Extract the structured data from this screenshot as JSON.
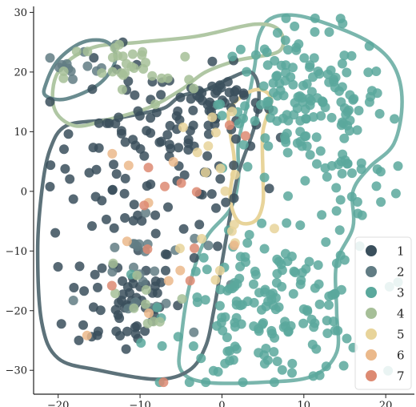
{
  "chart_data": {
    "type": "scatter",
    "title": "",
    "xlabel": "",
    "ylabel": "",
    "xlim": [
      -23,
      23.5
    ],
    "ylim": [
      -34,
      31
    ],
    "xticks": [
      -20,
      -10,
      0,
      10,
      20
    ],
    "yticks": [
      -30,
      -20,
      -10,
      0,
      10,
      20,
      30
    ],
    "xtick_labels": [
      "−20",
      "−10",
      "0",
      "10",
      "20"
    ],
    "ytick_labels": [
      "−30",
      "−20",
      "−10",
      "0",
      "10",
      "20",
      "30"
    ],
    "grid": false,
    "legend_position": "lower-right",
    "series": [
      {
        "name": "1",
        "color": "#3a4f5c"
      },
      {
        "name": "2",
        "color": "#617c84"
      },
      {
        "name": "3",
        "color": "#5aa89c"
      },
      {
        "name": "4",
        "color": "#a6bf98"
      },
      {
        "name": "5",
        "color": "#e8d49a"
      },
      {
        "name": "6",
        "color": "#ebb98b"
      },
      {
        "name": "7",
        "color": "#dd8a72"
      }
    ]
  }
}
